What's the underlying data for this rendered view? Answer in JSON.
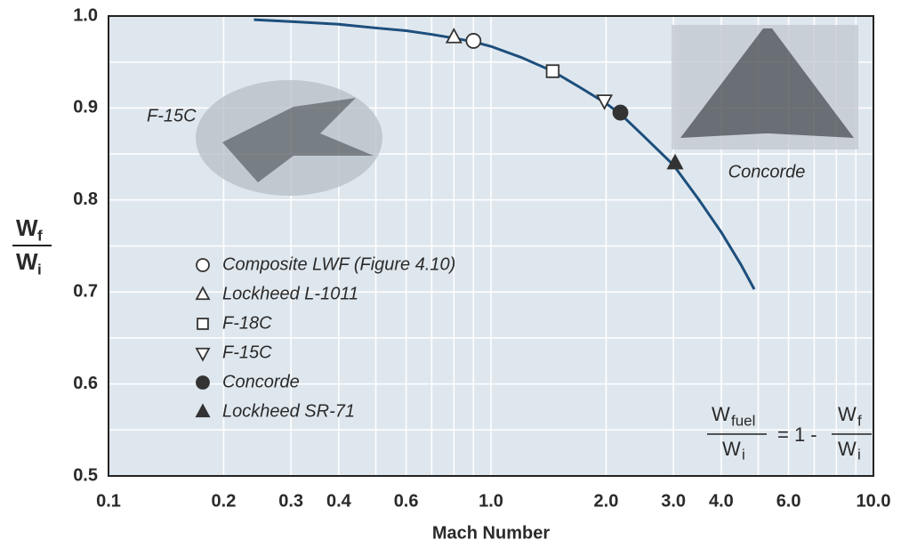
{
  "chart_data": {
    "type": "line",
    "xlabel": "Mach Number",
    "ylabel": {
      "num": "W",
      "num_sub": "f",
      "den": "W",
      "den_sub": "i"
    },
    "log_x": true,
    "grid": true,
    "xlim": [
      0.1,
      10
    ],
    "ylim": [
      0.5,
      1.0
    ],
    "xticks": [
      0.1,
      0.2,
      0.3,
      0.4,
      0.6,
      {
        "value": 1,
        "label": "1.0"
      },
      {
        "value": 2,
        "label": "2.0"
      },
      {
        "value": 3,
        "label": "3.0"
      },
      {
        "value": 4,
        "label": "4.0"
      },
      {
        "value": 6,
        "label": "6.0"
      },
      {
        "value": 10,
        "label": "10.0"
      }
    ],
    "x_minor_grid": [
      0.5,
      0.7,
      0.8,
      0.9,
      5,
      7,
      8,
      9
    ],
    "yticks": [
      {
        "value": 1,
        "label": "1.0"
      },
      0.9,
      0.8,
      0.7,
      0.6,
      0.5
    ],
    "y_minor_grid": [
      0.55,
      0.65,
      0.75,
      0.85,
      0.95
    ],
    "curve": {
      "color": "#1d4f7c",
      "x": [
        0.24,
        0.3,
        0.4,
        0.5,
        0.6,
        0.7,
        0.8,
        0.9,
        1.0,
        1.2,
        1.45,
        1.7,
        2.0,
        2.2,
        2.5,
        3.0,
        3.5,
        4.0,
        4.5,
        4.88
      ],
      "values": [
        0.996,
        0.994,
        0.991,
        0.987,
        0.984,
        0.98,
        0.976,
        0.972,
        0.967,
        0.955,
        0.94,
        0.923,
        0.905,
        0.892,
        0.87,
        0.838,
        0.8,
        0.765,
        0.73,
        0.703
      ]
    },
    "series": [
      {
        "name": "Composite LWF (Figure 4.10)",
        "marker": "circle",
        "filled": false,
        "color": "#333333",
        "x": [
          0.9
        ],
        "values": [
          0.973
        ]
      },
      {
        "name": "Lockheed L-1011",
        "marker": "triangle-up",
        "filled": false,
        "color": "#333333",
        "x": [
          0.8
        ],
        "values": [
          0.977
        ]
      },
      {
        "name": "F-18C",
        "marker": "square",
        "filled": false,
        "color": "#333333",
        "x": [
          1.45
        ],
        "values": [
          0.94
        ]
      },
      {
        "name": "F-15C",
        "marker": "triangle-down",
        "filled": false,
        "color": "#333333",
        "x": [
          1.98
        ],
        "values": [
          0.908
        ]
      },
      {
        "name": "Concorde",
        "marker": "circle",
        "filled": true,
        "color": "#333333",
        "x": [
          2.18
        ],
        "values": [
          0.895
        ]
      },
      {
        "name": "Lockheed SR-71",
        "marker": "triangle-up",
        "filled": true,
        "color": "#333333",
        "x": [
          3.03
        ],
        "values": [
          0.84
        ]
      }
    ],
    "annotations": [
      "F-15C",
      "Concorde"
    ],
    "formula": {
      "left_num": "W",
      "left_num_sub": "fuel",
      "left_den": "W",
      "left_den_sub": "i",
      "equals": "= 1 -",
      "right_num": "W",
      "right_num_sub": "f",
      "right_den": "W",
      "right_den_sub": "i"
    }
  }
}
